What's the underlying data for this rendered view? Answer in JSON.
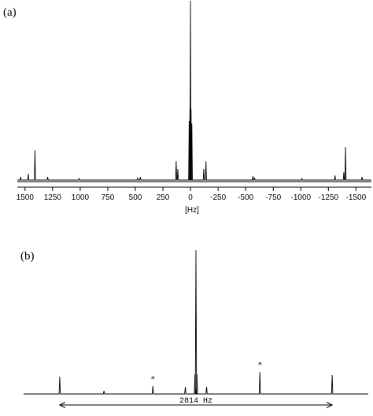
{
  "chart_data": [
    {
      "type": "line",
      "panel_label": "(a)",
      "xlabel": "[Hz]",
      "xlim": [
        1570,
        -1640
      ],
      "x_reversed": true,
      "tick_values": [
        1500,
        1250,
        1000,
        750,
        500,
        250,
        0,
        -250,
        -500,
        -750,
        -1000,
        -1250,
        -1500
      ],
      "tick_labels": [
        "1500",
        "1250",
        "1000",
        "750",
        "500",
        "250",
        "0",
        "-250",
        "-500",
        "-750",
        "-1000",
        "-1250",
        "-1500"
      ],
      "peaks": [
        {
          "x": 1540,
          "h": 4
        },
        {
          "x": 1470,
          "h": 8
        },
        {
          "x": 1410,
          "h": 38
        },
        {
          "x": 1295,
          "h": 4
        },
        {
          "x": 1010,
          "h": 2
        },
        {
          "x": 480,
          "h": 3
        },
        {
          "x": 455,
          "h": 4
        },
        {
          "x": 130,
          "h": 24
        },
        {
          "x": 115,
          "h": 14
        },
        {
          "x": 12,
          "h": 75
        },
        {
          "x": 5,
          "h": 92
        },
        {
          "x": 0,
          "h": 228
        },
        {
          "x": -5,
          "h": 90
        },
        {
          "x": -12,
          "h": 72
        },
        {
          "x": -120,
          "h": 14
        },
        {
          "x": -140,
          "h": 24
        },
        {
          "x": -565,
          "h": 5
        },
        {
          "x": -580,
          "h": 3
        },
        {
          "x": -1010,
          "h": 2
        },
        {
          "x": -1310,
          "h": 6
        },
        {
          "x": -1390,
          "h": 10
        },
        {
          "x": -1405,
          "h": 42
        },
        {
          "x": -1555,
          "h": 4
        }
      ]
    },
    {
      "type": "line",
      "panel_label": "(b)",
      "xlim": [
        -1780,
        1780
      ],
      "span_label": "2814 Hz",
      "span": [
        -1407,
        1407
      ],
      "marker": "*",
      "marked_peaks": [
        -445,
        660
      ],
      "peaks": [
        {
          "x": -1407,
          "h": 22
        },
        {
          "x": -950,
          "h": 4
        },
        {
          "x": -445,
          "h": 10
        },
        {
          "x": -110,
          "h": 9
        },
        {
          "x": -10,
          "h": 25
        },
        {
          "x": 0,
          "h": 183
        },
        {
          "x": 10,
          "h": 25
        },
        {
          "x": 110,
          "h": 9
        },
        {
          "x": 660,
          "h": 28
        },
        {
          "x": 1407,
          "h": 24
        }
      ]
    }
  ]
}
